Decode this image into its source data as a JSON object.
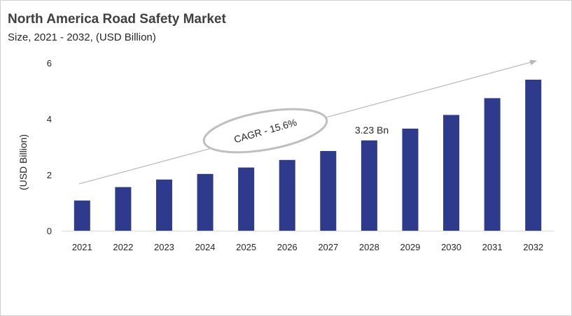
{
  "chart_data": {
    "type": "bar",
    "title": "North America Road Safety Market",
    "subtitle": "Size, 2021 - 2032, (USD Billion)",
    "ylabel": "(USD Billion)",
    "xlabel": "",
    "categories": [
      "2021",
      "2022",
      "2023",
      "2024",
      "2025",
      "2026",
      "2027",
      "2028",
      "2029",
      "2030",
      "2031",
      "2032"
    ],
    "values": [
      1.08,
      1.56,
      1.83,
      2.03,
      2.26,
      2.53,
      2.85,
      3.23,
      3.65,
      4.14,
      4.74,
      5.4
    ],
    "ylim": [
      0,
      6
    ],
    "yticks": [
      "0",
      "2",
      "4",
      "6"
    ],
    "bar_color": "#2e3a8c",
    "grid": false,
    "legend": "none",
    "annotations": {
      "value_label": {
        "category": "2028",
        "text": "3.23 Bn"
      },
      "cagr_label": "CAGR - 15.6%"
    }
  }
}
